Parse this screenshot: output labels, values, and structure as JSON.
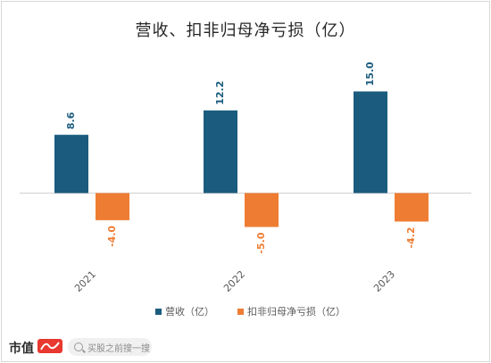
{
  "chart_data": {
    "type": "bar",
    "title": "营收、扣非归母净亏损（亿）",
    "categories": [
      "2021",
      "2022",
      "2023"
    ],
    "series": [
      {
        "name": "营收（亿）",
        "values": [
          8.6,
          12.2,
          15.0
        ],
        "labels": [
          "8.6",
          "12.2",
          "15.0"
        ],
        "color": "#1b5c7e"
      },
      {
        "name": "扣非归母净亏损（亿）",
        "values": [
          -4.0,
          -5.0,
          -4.2
        ],
        "labels": [
          "-4.0",
          "-5.0",
          "-4.2"
        ],
        "color": "#ee7d33"
      }
    ],
    "ylim": [
      -5.0,
      15.0
    ],
    "grid": false,
    "legend_position": "bottom"
  },
  "footer": {
    "brand": "市值",
    "search_placeholder": "买股之前搜一搜"
  }
}
